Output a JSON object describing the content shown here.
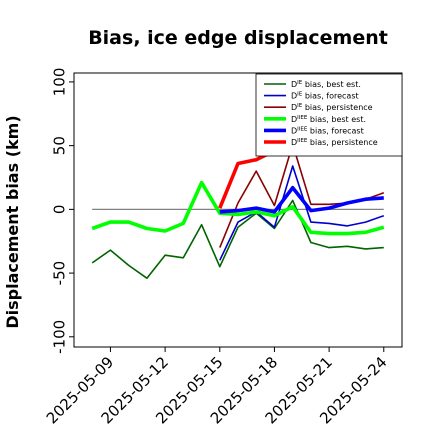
{
  "chart_data": {
    "type": "line",
    "title": "Bias, ice edge displacement",
    "ylabel": "Displacement bias (km)",
    "xlabel": "",
    "ylim": [
      -108,
      107
    ],
    "y_ticks": [
      -100,
      -50,
      0,
      50,
      100
    ],
    "x_ticks": [
      {
        "label": "2025-05-09",
        "date": "2025-05-09",
        "color": "#000000"
      },
      {
        "label": "2025-05-12",
        "date": "2025-05-12",
        "color": "#000000"
      },
      {
        "label": "2025-05-15",
        "date": "2025-05-15",
        "color": "#228B22"
      },
      {
        "label": "2025-05-18",
        "date": "2025-05-18",
        "color": "#000000"
      },
      {
        "label": "2025-05-21",
        "date": "2025-05-21",
        "color": "#000000"
      },
      {
        "label": "2025-05-24",
        "date": "2025-05-24",
        "color": "#000000"
      }
    ],
    "xlim": [
      "2025-05-07",
      "2025-05-25"
    ],
    "grid": false,
    "zero_line": true,
    "legend_position": "top-right",
    "series": [
      {
        "name": "D<sup>IE</sup> bias, best est.",
        "legend_main": "D",
        "legend_sup": "IE",
        "legend_rest": " bias, best est.",
        "color": "#006400",
        "width": 1.6,
        "points": [
          [
            "2025-05-08",
            -42
          ],
          [
            "2025-05-09",
            -32
          ],
          [
            "2025-05-10",
            -44
          ],
          [
            "2025-05-11",
            -54
          ],
          [
            "2025-05-12",
            -36
          ],
          [
            "2025-05-13",
            -38
          ],
          [
            "2025-05-14",
            -12
          ],
          [
            "2025-05-15",
            -45
          ],
          [
            "2025-05-16",
            -14
          ],
          [
            "2025-05-17",
            -3
          ],
          [
            "2025-05-18",
            -15
          ],
          [
            "2025-05-19",
            7
          ],
          [
            "2025-05-20",
            -26
          ],
          [
            "2025-05-21",
            -30
          ],
          [
            "2025-05-22",
            -29
          ],
          [
            "2025-05-23",
            -31
          ],
          [
            "2025-05-24",
            -30
          ]
        ]
      },
      {
        "name": "D<sup>IE</sup> bias, forecast",
        "legend_main": "D",
        "legend_sup": "IE",
        "legend_rest": " bias, forecast",
        "color": "#0000CD",
        "width": 1.6,
        "points": [
          [
            "2025-05-15",
            -40
          ],
          [
            "2025-05-16",
            -10
          ],
          [
            "2025-05-17",
            -2
          ],
          [
            "2025-05-18",
            -14
          ],
          [
            "2025-05-19",
            34
          ],
          [
            "2025-05-20",
            -10
          ],
          [
            "2025-05-21",
            -11
          ],
          [
            "2025-05-22",
            -13
          ],
          [
            "2025-05-23",
            -10
          ],
          [
            "2025-05-24",
            -5
          ]
        ]
      },
      {
        "name": "D<sup>IE</sup> bias, persistence",
        "legend_main": "D",
        "legend_sup": "IE",
        "legend_rest": " bias, persistence",
        "color": "#8B0000",
        "width": 1.6,
        "points": [
          [
            "2025-05-15",
            -30
          ],
          [
            "2025-05-16",
            5
          ],
          [
            "2025-05-17",
            30
          ],
          [
            "2025-05-18",
            3
          ],
          [
            "2025-05-19",
            51
          ],
          [
            "2025-05-20",
            4
          ],
          [
            "2025-05-21",
            4
          ],
          [
            "2025-05-22",
            5
          ],
          [
            "2025-05-23",
            8
          ],
          [
            "2025-05-24",
            13
          ]
        ]
      },
      {
        "name": "D<sup>IIEE</sup> bias, best est.",
        "legend_main": "D",
        "legend_sup": "IIEE",
        "legend_rest": " bias, best est.",
        "color": "#00FF00",
        "width": 3.6,
        "points": [
          [
            "2025-05-08",
            -15
          ],
          [
            "2025-05-09",
            -10
          ],
          [
            "2025-05-10",
            -10
          ],
          [
            "2025-05-11",
            -15
          ],
          [
            "2025-05-12",
            -17
          ],
          [
            "2025-05-13",
            -11
          ],
          [
            "2025-05-14",
            21
          ],
          [
            "2025-05-15",
            -3
          ],
          [
            "2025-05-16",
            -4
          ],
          [
            "2025-05-17",
            -2
          ],
          [
            "2025-05-18",
            -5
          ],
          [
            "2025-05-19",
            2
          ],
          [
            "2025-05-20",
            -18
          ],
          [
            "2025-05-21",
            -19
          ],
          [
            "2025-05-22",
            -19
          ],
          [
            "2025-05-23",
            -18
          ],
          [
            "2025-05-24",
            -14
          ]
        ]
      },
      {
        "name": "D<sup>IIEE</sup> bias, forecast",
        "legend_main": "D",
        "legend_sup": "IIEE",
        "legend_rest": " bias, forecast",
        "color": "#0000FF",
        "width": 3.6,
        "points": [
          [
            "2025-05-15",
            -2
          ],
          [
            "2025-05-16",
            -1
          ],
          [
            "2025-05-17",
            1
          ],
          [
            "2025-05-18",
            -2
          ],
          [
            "2025-05-19",
            17
          ],
          [
            "2025-05-20",
            -1
          ],
          [
            "2025-05-21",
            1
          ],
          [
            "2025-05-22",
            5
          ],
          [
            "2025-05-23",
            8
          ],
          [
            "2025-05-24",
            9
          ]
        ]
      },
      {
        "name": "D<sup>IIEE</sup> bias, persistence",
        "legend_main": "D",
        "legend_sup": "IIEE",
        "legend_rest": " bias, persistence",
        "color": "#FF0000",
        "width": 3.6,
        "points": [
          [
            "2025-05-15",
            1
          ],
          [
            "2025-05-16",
            36
          ],
          [
            "2025-05-17",
            39
          ],
          [
            "2025-05-18",
            46
          ],
          [
            "2025-05-19",
            49
          ]
        ]
      }
    ]
  }
}
